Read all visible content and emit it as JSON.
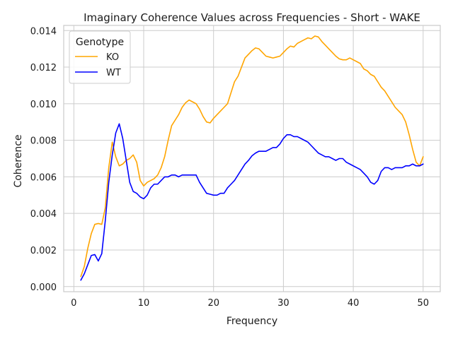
{
  "chart_data": {
    "type": "line",
    "title": "Imaginary Coherence Values across Frequencies - Short - WAKE",
    "xlabel": "Frequency",
    "ylabel": "Coherence",
    "xlim": [
      -1.45,
      52.45
    ],
    "ylim": [
      -0.00028,
      0.01428
    ],
    "xticks": [
      0,
      10,
      20,
      30,
      40,
      50
    ],
    "xtick_labels": [
      "0",
      "10",
      "20",
      "30",
      "40",
      "50"
    ],
    "yticks": [
      0.0,
      0.002,
      0.004,
      0.006,
      0.008,
      0.01,
      0.012,
      0.014
    ],
    "ytick_labels": [
      "0.000",
      "0.002",
      "0.004",
      "0.006",
      "0.008",
      "0.010",
      "0.012",
      "0.014"
    ],
    "grid": true,
    "legend": {
      "title": "Genotype",
      "position": "top-left"
    },
    "series": [
      {
        "name": "KO",
        "color": "#FFA500",
        "points": [
          [
            1,
            0.00055
          ],
          [
            1.5,
            0.0011
          ],
          [
            2,
            0.0021
          ],
          [
            2.5,
            0.0029
          ],
          [
            3,
            0.0034
          ],
          [
            3.5,
            0.00345
          ],
          [
            4,
            0.0034
          ],
          [
            4.5,
            0.0043
          ],
          [
            5,
            0.0065
          ],
          [
            5.5,
            0.0079
          ],
          [
            6,
            0.0071
          ],
          [
            6.5,
            0.0066
          ],
          [
            7,
            0.0067
          ],
          [
            7.5,
            0.0069
          ],
          [
            8,
            0.007
          ],
          [
            8.5,
            0.0072
          ],
          [
            9,
            0.0068
          ],
          [
            9.5,
            0.0058
          ],
          [
            10,
            0.0055
          ],
          [
            10.5,
            0.0057
          ],
          [
            11,
            0.0058
          ],
          [
            11.5,
            0.0059
          ],
          [
            12,
            0.0061
          ],
          [
            12.5,
            0.0065
          ],
          [
            13,
            0.0071
          ],
          [
            13.5,
            0.008
          ],
          [
            14,
            0.0088
          ],
          [
            14.5,
            0.0091
          ],
          [
            15,
            0.0094
          ],
          [
            15.5,
            0.0098
          ],
          [
            16,
            0.01005
          ],
          [
            16.5,
            0.0102
          ],
          [
            17,
            0.0101
          ],
          [
            17.5,
            0.01
          ],
          [
            18,
            0.0097
          ],
          [
            18.5,
            0.0093
          ],
          [
            19,
            0.009
          ],
          [
            19.5,
            0.00895
          ],
          [
            20,
            0.0092
          ],
          [
            20.5,
            0.0094
          ],
          [
            21,
            0.0096
          ],
          [
            21.5,
            0.0098
          ],
          [
            22,
            0.01
          ],
          [
            22.5,
            0.0106
          ],
          [
            23,
            0.0112
          ],
          [
            23.5,
            0.0115
          ],
          [
            24,
            0.012
          ],
          [
            24.5,
            0.0125
          ],
          [
            25,
            0.0127
          ],
          [
            25.5,
            0.0129
          ],
          [
            26,
            0.01305
          ],
          [
            26.5,
            0.013
          ],
          [
            27,
            0.0128
          ],
          [
            27.5,
            0.0126
          ],
          [
            28,
            0.01255
          ],
          [
            28.5,
            0.0125
          ],
          [
            29,
            0.01255
          ],
          [
            29.5,
            0.0126
          ],
          [
            30,
            0.0128
          ],
          [
            30.5,
            0.013
          ],
          [
            31,
            0.01315
          ],
          [
            31.5,
            0.0131
          ],
          [
            32,
            0.0133
          ],
          [
            32.5,
            0.0134
          ],
          [
            33,
            0.0135
          ],
          [
            33.5,
            0.0136
          ],
          [
            34,
            0.01355
          ],
          [
            34.5,
            0.0137
          ],
          [
            35,
            0.01365
          ],
          [
            35.5,
            0.0134
          ],
          [
            36,
            0.0132
          ],
          [
            36.5,
            0.013
          ],
          [
            37,
            0.0128
          ],
          [
            37.5,
            0.0126
          ],
          [
            38,
            0.01245
          ],
          [
            38.5,
            0.0124
          ],
          [
            39,
            0.0124
          ],
          [
            39.5,
            0.0125
          ],
          [
            40,
            0.0124
          ],
          [
            40.5,
            0.0123
          ],
          [
            41,
            0.0122
          ],
          [
            41.5,
            0.0119
          ],
          [
            42,
            0.0118
          ],
          [
            42.5,
            0.0116
          ],
          [
            43,
            0.0115
          ],
          [
            43.5,
            0.0112
          ],
          [
            44,
            0.0109
          ],
          [
            44.5,
            0.0107
          ],
          [
            45,
            0.0104
          ],
          [
            45.5,
            0.0101
          ],
          [
            46,
            0.0098
          ],
          [
            46.5,
            0.0096
          ],
          [
            47,
            0.0094
          ],
          [
            47.5,
            0.009
          ],
          [
            48,
            0.0083
          ],
          [
            48.5,
            0.0075
          ],
          [
            49,
            0.0068
          ],
          [
            49.5,
            0.0066
          ],
          [
            50,
            0.0071
          ]
        ]
      },
      {
        "name": "WT",
        "color": "#0000FF",
        "points": [
          [
            1,
            0.00035
          ],
          [
            1.5,
            0.0007
          ],
          [
            2,
            0.0012
          ],
          [
            2.5,
            0.0017
          ],
          [
            3,
            0.00175
          ],
          [
            3.5,
            0.0014
          ],
          [
            4,
            0.0018
          ],
          [
            4.5,
            0.0036
          ],
          [
            5,
            0.0057
          ],
          [
            5.5,
            0.0072
          ],
          [
            6,
            0.0084
          ],
          [
            6.5,
            0.0089
          ],
          [
            7,
            0.0081
          ],
          [
            7.5,
            0.0069
          ],
          [
            8,
            0.0057
          ],
          [
            8.5,
            0.0052
          ],
          [
            9,
            0.0051
          ],
          [
            9.5,
            0.0049
          ],
          [
            10,
            0.0048
          ],
          [
            10.5,
            0.005
          ],
          [
            11,
            0.0054
          ],
          [
            11.5,
            0.0056
          ],
          [
            12,
            0.0056
          ],
          [
            12.5,
            0.0058
          ],
          [
            13,
            0.006
          ],
          [
            13.5,
            0.006
          ],
          [
            14,
            0.0061
          ],
          [
            14.5,
            0.0061
          ],
          [
            15,
            0.006
          ],
          [
            15.5,
            0.0061
          ],
          [
            16,
            0.0061
          ],
          [
            16.5,
            0.0061
          ],
          [
            17,
            0.0061
          ],
          [
            17.5,
            0.0061
          ],
          [
            18,
            0.0057
          ],
          [
            18.5,
            0.0054
          ],
          [
            19,
            0.0051
          ],
          [
            19.5,
            0.00505
          ],
          [
            20,
            0.005
          ],
          [
            20.5,
            0.005
          ],
          [
            21,
            0.0051
          ],
          [
            21.5,
            0.0051
          ],
          [
            22,
            0.0054
          ],
          [
            22.5,
            0.0056
          ],
          [
            23,
            0.0058
          ],
          [
            23.5,
            0.0061
          ],
          [
            24,
            0.0064
          ],
          [
            24.5,
            0.0067
          ],
          [
            25,
            0.0069
          ],
          [
            25.5,
            0.00715
          ],
          [
            26,
            0.0073
          ],
          [
            26.5,
            0.0074
          ],
          [
            27,
            0.0074
          ],
          [
            27.5,
            0.0074
          ],
          [
            28,
            0.0075
          ],
          [
            28.5,
            0.0076
          ],
          [
            29,
            0.0076
          ],
          [
            29.5,
            0.0078
          ],
          [
            30,
            0.0081
          ],
          [
            30.5,
            0.0083
          ],
          [
            31,
            0.0083
          ],
          [
            31.5,
            0.0082
          ],
          [
            32,
            0.0082
          ],
          [
            32.5,
            0.0081
          ],
          [
            33,
            0.008
          ],
          [
            33.5,
            0.0079
          ],
          [
            34,
            0.0077
          ],
          [
            34.5,
            0.0075
          ],
          [
            35,
            0.0073
          ],
          [
            35.5,
            0.0072
          ],
          [
            36,
            0.0071
          ],
          [
            36.5,
            0.0071
          ],
          [
            37,
            0.007
          ],
          [
            37.5,
            0.0069
          ],
          [
            38,
            0.007
          ],
          [
            38.5,
            0.007
          ],
          [
            39,
            0.0068
          ],
          [
            39.5,
            0.0067
          ],
          [
            40,
            0.0066
          ],
          [
            40.5,
            0.0065
          ],
          [
            41,
            0.0064
          ],
          [
            41.5,
            0.0062
          ],
          [
            42,
            0.006
          ],
          [
            42.5,
            0.0057
          ],
          [
            43,
            0.0056
          ],
          [
            43.5,
            0.0058
          ],
          [
            44,
            0.0063
          ],
          [
            44.5,
            0.0065
          ],
          [
            45,
            0.0065
          ],
          [
            45.5,
            0.0064
          ],
          [
            46,
            0.0065
          ],
          [
            46.5,
            0.0065
          ],
          [
            47,
            0.0065
          ],
          [
            47.5,
            0.0066
          ],
          [
            48,
            0.0066
          ],
          [
            48.5,
            0.0067
          ],
          [
            49,
            0.0066
          ],
          [
            49.5,
            0.0066
          ],
          [
            50,
            0.0067
          ]
        ]
      }
    ]
  }
}
